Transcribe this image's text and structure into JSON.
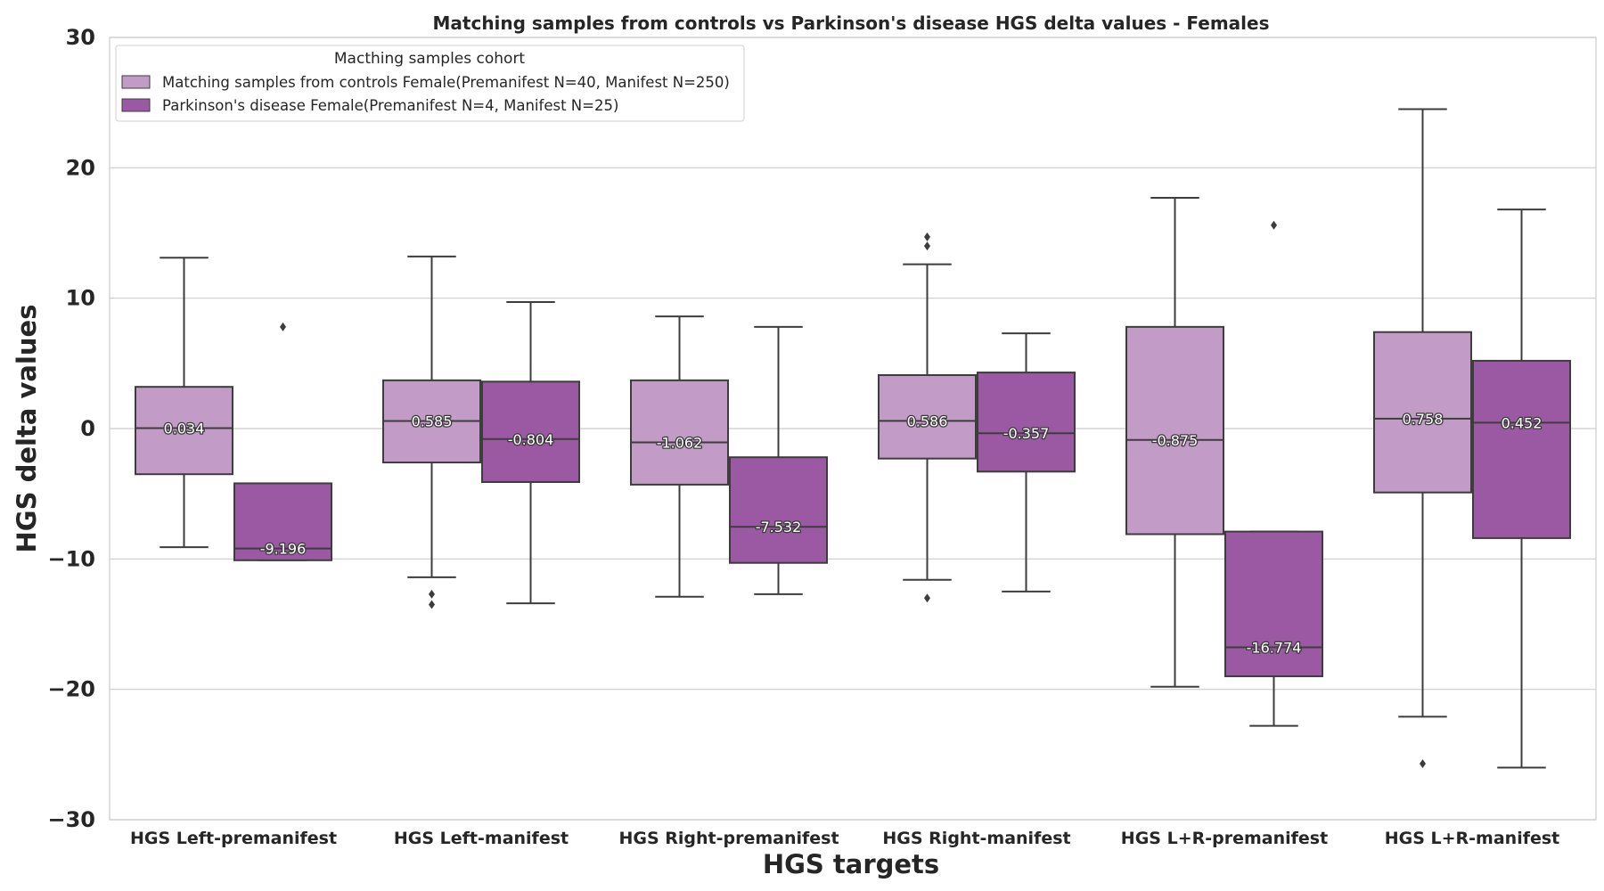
{
  "chart_data": {
    "type": "box",
    "title": "Matching samples from controls vs Parkinson's disease HGS delta values - Females",
    "xlabel": "HGS targets",
    "ylabel": "HGS delta values",
    "ylim": [
      -30,
      30
    ],
    "yticks": [
      30,
      20,
      10,
      0,
      -10,
      -20,
      -30
    ],
    "ytick_labels": [
      "30",
      "20",
      "10",
      "0",
      "−10",
      "−20",
      "−30"
    ],
    "grid": true,
    "categories": [
      "HGS Left-premanifest",
      "HGS Left-manifest",
      "HGS Right-premanifest",
      "HGS Right-manifest",
      "HGS L+R-premanifest",
      "HGS L+R-manifest"
    ],
    "legend": {
      "title": "Macthing samples cohort",
      "placement": "upper-left"
    },
    "series": [
      {
        "name": "Matching samples from controls Female(Premanifest N=40, Manifest N=250)",
        "color": "#c39bc7",
        "boxes": [
          {
            "whislo": -9.1,
            "q1": -3.5,
            "med": 0.034,
            "q3": 3.2,
            "whishi": 13.1,
            "fliers": [],
            "label": "0.034"
          },
          {
            "whislo": -11.4,
            "q1": -2.6,
            "med": 0.585,
            "q3": 3.7,
            "whishi": 13.2,
            "fliers": [
              -12.7,
              -13.5
            ],
            "label": "0.585"
          },
          {
            "whislo": -12.9,
            "q1": -4.3,
            "med": -1.062,
            "q3": 3.7,
            "whishi": 8.6,
            "fliers": [],
            "label": "-1.062"
          },
          {
            "whislo": -11.6,
            "q1": -2.3,
            "med": 0.586,
            "q3": 4.1,
            "whishi": 12.6,
            "fliers": [
              14.0,
              14.7,
              -13.0
            ],
            "label": "0.586"
          },
          {
            "whislo": -19.8,
            "q1": -8.1,
            "med": -0.875,
            "q3": 7.8,
            "whishi": 17.7,
            "fliers": [],
            "label": "-0.875"
          },
          {
            "whislo": -22.1,
            "q1": -4.9,
            "med": 0.758,
            "q3": 7.4,
            "whishi": 24.5,
            "fliers": [
              -25.7
            ],
            "label": "0.758"
          }
        ]
      },
      {
        "name": "Parkinson's disease Female(Premanifest N=4, Manifest N=25)",
        "color": "#9b59a3",
        "boxes": [
          {
            "whislo": -10.1,
            "q1": -10.1,
            "med": -9.196,
            "q3": -4.2,
            "whishi": -4.2,
            "fliers": [
              7.8
            ],
            "label": "-9.196"
          },
          {
            "whislo": -13.4,
            "q1": -4.1,
            "med": -0.804,
            "q3": 3.6,
            "whishi": 9.7,
            "fliers": [],
            "label": "-0.804"
          },
          {
            "whislo": -12.7,
            "q1": -10.3,
            "med": -7.532,
            "q3": -2.2,
            "whishi": 7.8,
            "fliers": [],
            "label": "-7.532"
          },
          {
            "whislo": -12.5,
            "q1": -3.3,
            "med": -0.357,
            "q3": 4.3,
            "whishi": 7.3,
            "fliers": [],
            "label": "-0.357"
          },
          {
            "whislo": -22.8,
            "q1": -19.0,
            "med": -16.774,
            "q3": -7.9,
            "whishi": -7.9,
            "fliers": [
              15.6
            ],
            "label": "-16.774"
          },
          {
            "whislo": -26.0,
            "q1": -8.4,
            "med": 0.452,
            "q3": 5.2,
            "whishi": 16.8,
            "fliers": [],
            "label": "0.452"
          }
        ]
      }
    ]
  }
}
